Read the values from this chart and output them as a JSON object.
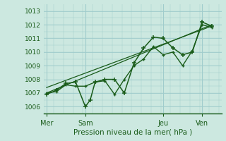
{
  "xlabel": "Pression niveau de la mer( hPa )",
  "bg_color": "#cce8e0",
  "grid_color": "#a0cccc",
  "line_color": "#1a5c1a",
  "ylim": [
    1005.5,
    1013.5
  ],
  "yticks": [
    1006,
    1007,
    1008,
    1009,
    1010,
    1011,
    1012,
    1013
  ],
  "xtick_labels": [
    "Mer",
    "Sam",
    "Jeu",
    "Ven"
  ],
  "xtick_positions": [
    0,
    16,
    48,
    64
  ],
  "vline_positions": [
    0,
    16,
    48,
    64
  ],
  "xlim": [
    -1,
    72
  ],
  "series1_x": [
    0,
    4,
    8,
    12,
    16,
    18,
    20,
    24,
    28,
    32,
    36,
    40,
    44,
    48,
    52,
    56,
    60,
    64,
    68
  ],
  "series1_y": [
    1006.9,
    1007.2,
    1007.7,
    1007.8,
    1006.0,
    1006.5,
    1007.8,
    1008.0,
    1008.0,
    1007.0,
    1009.2,
    1010.3,
    1011.1,
    1011.0,
    1010.3,
    1009.8,
    1010.0,
    1012.2,
    1011.9
  ],
  "series2_x": [
    0,
    4,
    8,
    12,
    16,
    20,
    24,
    28,
    32,
    36,
    40,
    44,
    48,
    52,
    56,
    60,
    64,
    68
  ],
  "series2_y": [
    1007.0,
    1007.1,
    1007.6,
    1007.5,
    1007.5,
    1007.8,
    1007.9,
    1006.9,
    1008.0,
    1009.0,
    1009.5,
    1010.4,
    1009.8,
    1010.0,
    1009.0,
    1010.1,
    1012.0,
    1011.8
  ],
  "series3_x": [
    0,
    68
  ],
  "series3_y": [
    1007.0,
    1012.0
  ],
  "series4_x": [
    0,
    68
  ],
  "series4_y": [
    1007.4,
    1011.9
  ]
}
